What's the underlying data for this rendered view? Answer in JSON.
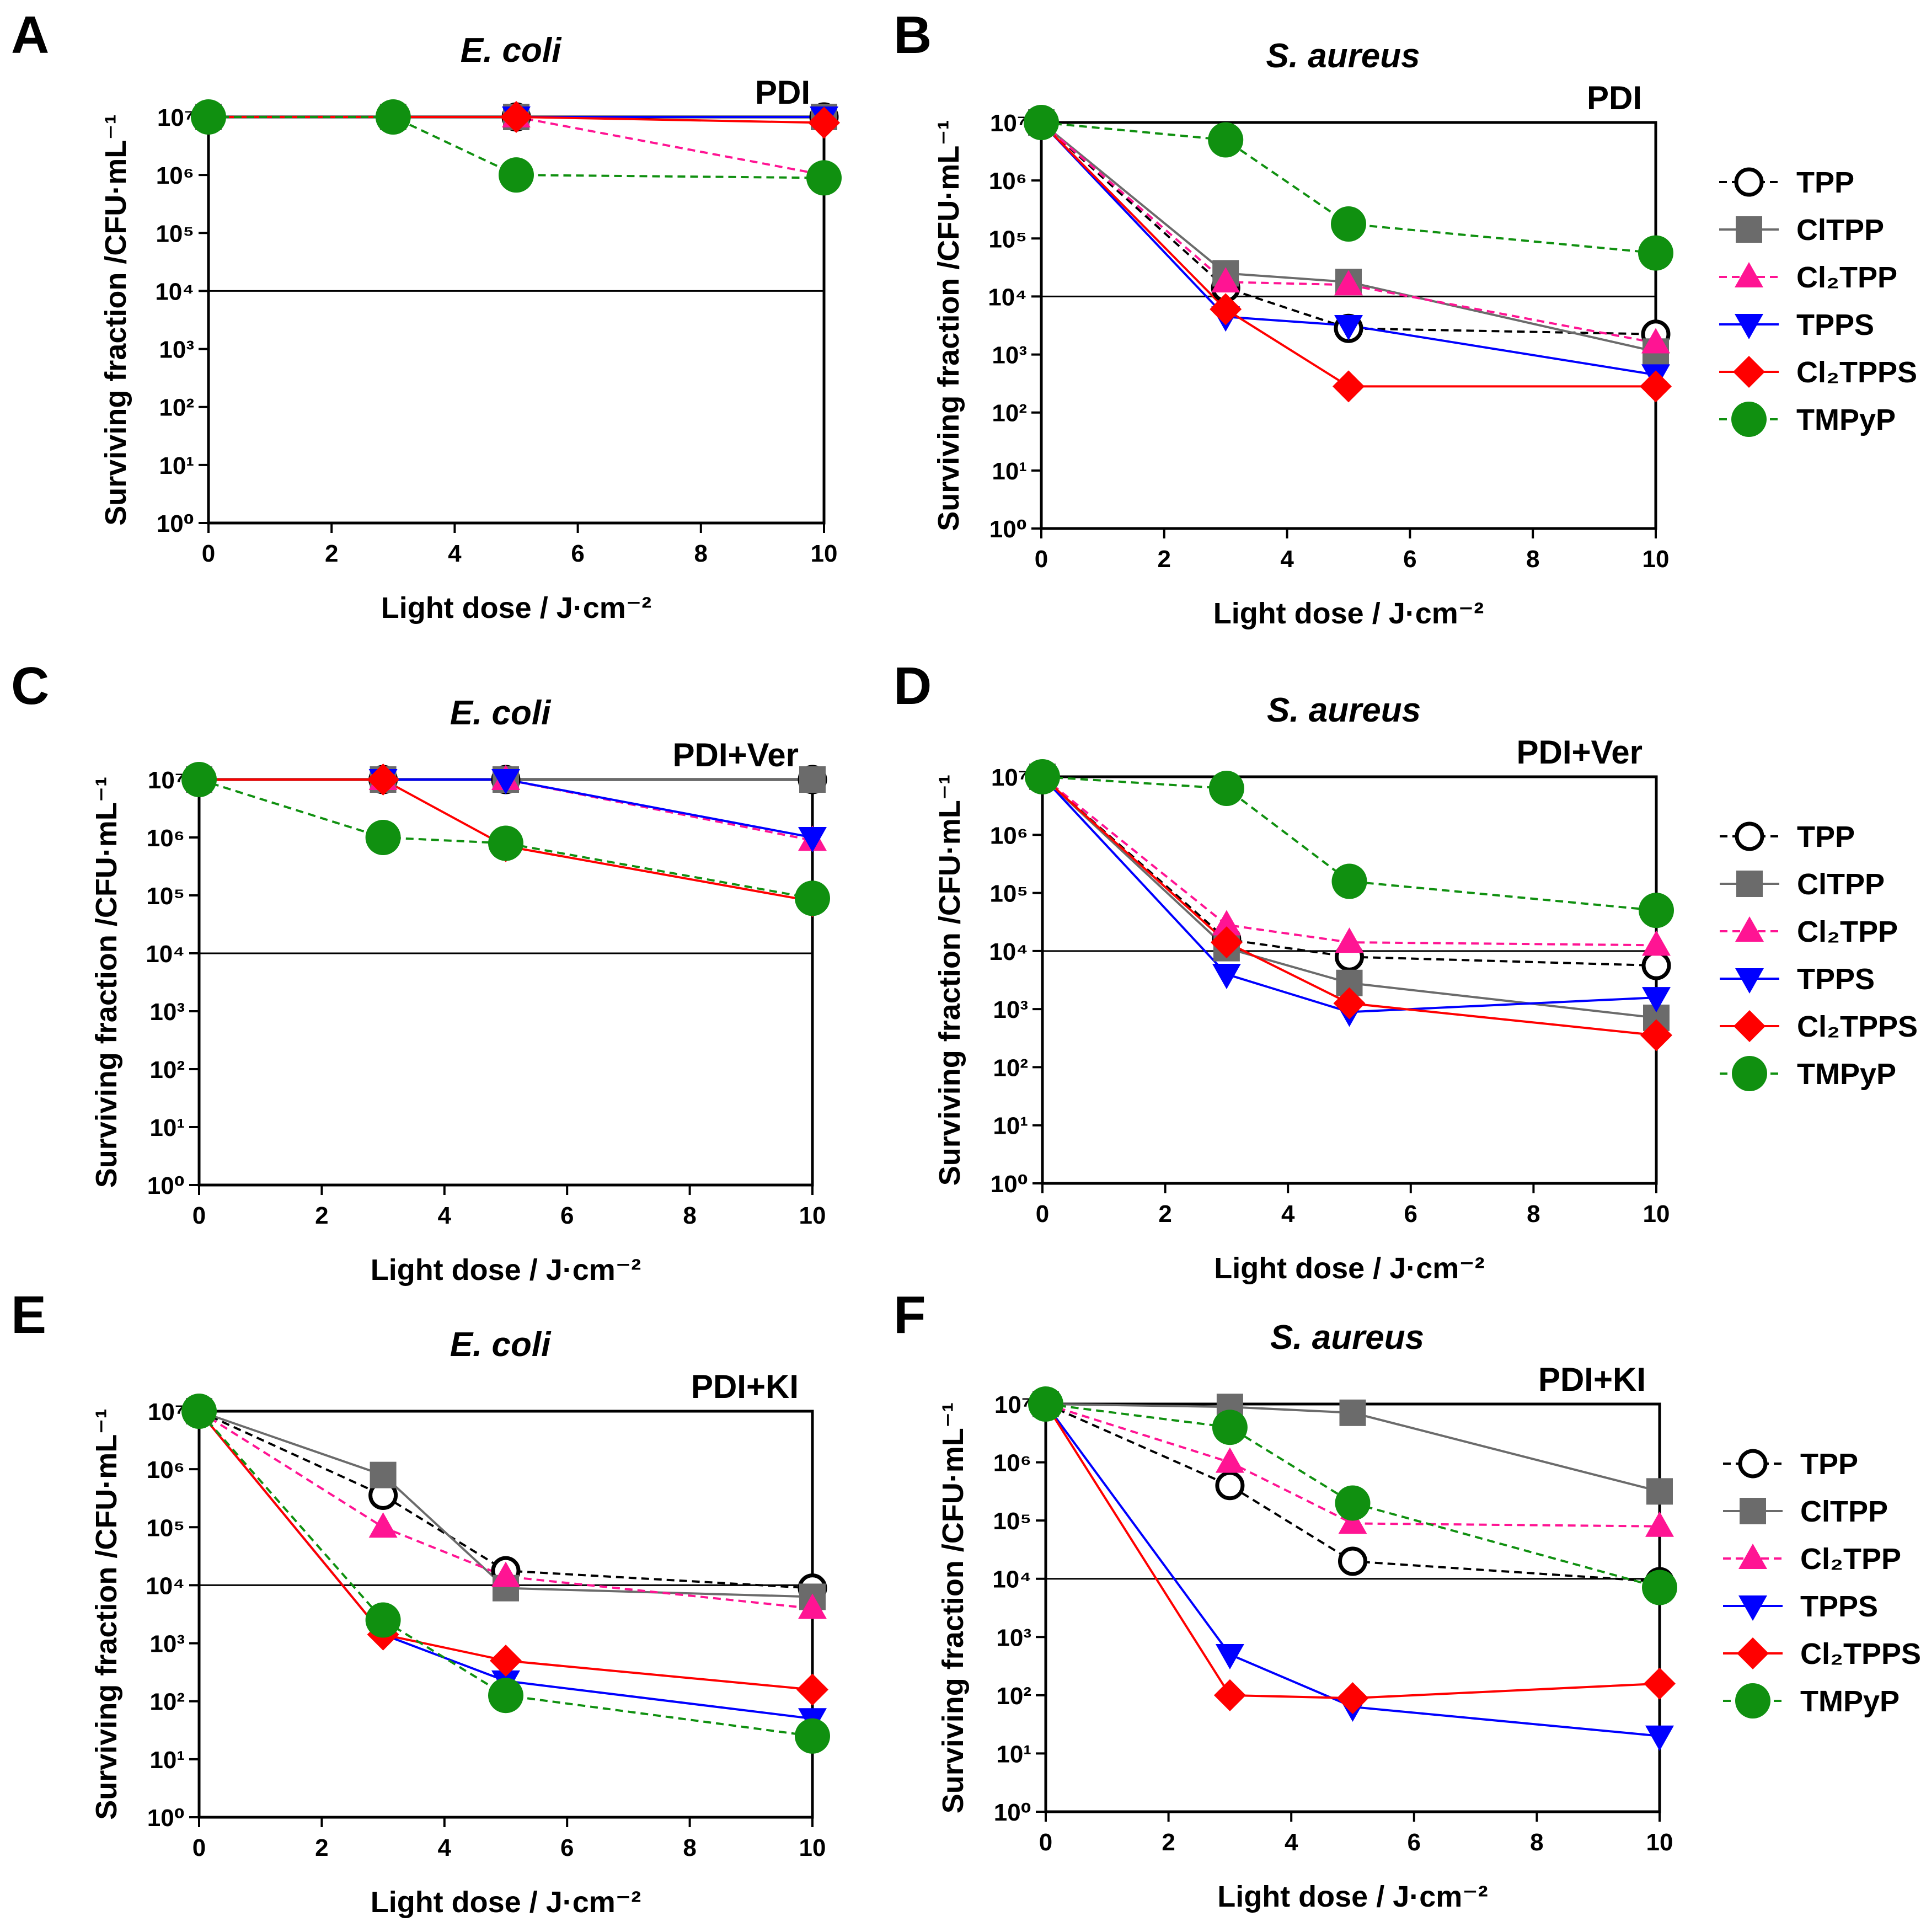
{
  "chart_data": [
    {
      "panel": "A",
      "type": "line",
      "title": "E. coli",
      "treatment": "PDI",
      "xlabel": "Light dose / J·cm⁻²",
      "ylabel": "Surviving fraction /CFU·mL⁻¹",
      "xlim": [
        0,
        10
      ],
      "ylim_log10": [
        0,
        7
      ],
      "reference_line_log10": 4,
      "x_ticks": [
        "0",
        "2",
        "4",
        "6",
        "8",
        "10"
      ],
      "y_ticks": [
        "10⁰",
        "10¹",
        "10²",
        "10³",
        "10⁴",
        "10⁵",
        "10⁶",
        "10⁷"
      ],
      "x": [
        0,
        3,
        5,
        10
      ],
      "legend": false,
      "series": [
        {
          "name": "TPP",
          "log10": [
            7,
            7,
            7,
            7
          ]
        },
        {
          "name": "ClTPP",
          "log10": [
            7,
            7,
            7,
            7
          ]
        },
        {
          "name": "Cl₂TPP",
          "log10": [
            7,
            7,
            7,
            6
          ]
        },
        {
          "name": "TPPS",
          "log10": [
            7,
            7,
            7,
            7
          ]
        },
        {
          "name": "Cl₂TPPS",
          "log10": [
            7,
            7,
            7,
            6.9
          ]
        },
        {
          "name": "TMPyP",
          "log10": [
            7,
            7,
            6,
            5.95
          ]
        }
      ]
    },
    {
      "panel": "B",
      "type": "line",
      "title": "S. aureus",
      "treatment": "PDI",
      "xlabel": "Light dose / J·cm⁻²",
      "ylabel": "Surviving fraction /CFU·mL⁻¹",
      "xlim": [
        0,
        10
      ],
      "ylim_log10": [
        0,
        7
      ],
      "reference_line_log10": 4,
      "x_ticks": [
        "0",
        "2",
        "4",
        "6",
        "8",
        "10"
      ],
      "y_ticks": [
        "10⁰",
        "10¹",
        "10²",
        "10³",
        "10⁴",
        "10⁵",
        "10⁶",
        "10⁷"
      ],
      "x": [
        0,
        3,
        5,
        10
      ],
      "legend": true,
      "series": [
        {
          "name": "TPP",
          "log10": [
            7,
            4.15,
            3.45,
            3.35
          ]
        },
        {
          "name": "ClTPP",
          "log10": [
            7,
            4.4,
            4.25,
            3.05
          ]
        },
        {
          "name": "Cl₂TPP",
          "log10": [
            7,
            4.25,
            4.2,
            3.2
          ]
        },
        {
          "name": "TPPS",
          "log10": [
            7,
            3.65,
            3.5,
            2.65
          ]
        },
        {
          "name": "Cl₂TPPS",
          "log10": [
            7,
            3.78,
            2.45,
            2.45
          ]
        },
        {
          "name": "TMPyP",
          "log10": [
            7,
            6.7,
            5.25,
            4.75
          ]
        }
      ]
    },
    {
      "panel": "C",
      "type": "line",
      "title": "E. coli",
      "treatment": "PDI+Ver",
      "xlabel": "Light dose / J·cm⁻²",
      "ylabel": "Surviving fraction /CFU·mL⁻¹",
      "xlim": [
        0,
        10
      ],
      "ylim_log10": [
        0,
        7
      ],
      "reference_line_log10": 4,
      "x_ticks": [
        "0",
        "2",
        "4",
        "6",
        "8",
        "10"
      ],
      "y_ticks": [
        "10⁰",
        "10¹",
        "10²",
        "10³",
        "10⁴",
        "10⁵",
        "10⁶",
        "10⁷"
      ],
      "x": [
        0,
        3,
        5,
        10
      ],
      "legend": false,
      "series": [
        {
          "name": "TPP",
          "log10": [
            7,
            7,
            7,
            7
          ]
        },
        {
          "name": "ClTPP",
          "log10": [
            7,
            7,
            7,
            7
          ]
        },
        {
          "name": "Cl₂TPP",
          "log10": [
            7,
            7,
            7,
            5.95
          ]
        },
        {
          "name": "TPPS",
          "log10": [
            7,
            7,
            7,
            6
          ]
        },
        {
          "name": "Cl₂TPPS",
          "log10": [
            7,
            7,
            5.85,
            4.9
          ]
        },
        {
          "name": "TMPyP",
          "log10": [
            7,
            6,
            5.9,
            4.95
          ]
        }
      ]
    },
    {
      "panel": "D",
      "type": "line",
      "title": "S. aureus",
      "treatment": "PDI+Ver",
      "xlabel": "Light dose / J·cm⁻²",
      "ylabel": "Surviving fraction /CFU·mL⁻¹",
      "xlim": [
        0,
        10
      ],
      "ylim_log10": [
        0,
        7
      ],
      "reference_line_log10": 4,
      "x_ticks": [
        "0",
        "2",
        "4",
        "6",
        "8",
        "10"
      ],
      "y_ticks": [
        "10⁰",
        "10¹",
        "10²",
        "10³",
        "10⁴",
        "10⁵",
        "10⁶",
        "10⁷"
      ],
      "x": [
        0,
        3,
        5,
        10
      ],
      "legend": true,
      "series": [
        {
          "name": "TPP",
          "log10": [
            7,
            4.2,
            3.9,
            3.75
          ]
        },
        {
          "name": "ClTPP",
          "log10": [
            7,
            4.05,
            3.45,
            2.85
          ]
        },
        {
          "name": "Cl₂TPP",
          "log10": [
            7,
            4.45,
            4.15,
            4.1
          ]
        },
        {
          "name": "TPPS",
          "log10": [
            7,
            3.6,
            2.95,
            3.2
          ]
        },
        {
          "name": "Cl₂TPPS",
          "log10": [
            7,
            4.15,
            3.1,
            2.55
          ]
        },
        {
          "name": "TMPyP",
          "log10": [
            7,
            6.8,
            5.2,
            4.7
          ]
        }
      ]
    },
    {
      "panel": "E",
      "type": "line",
      "title": "E. coli",
      "treatment": "PDI+KI",
      "xlabel": "Light dose / J·cm⁻²",
      "ylabel": "Surviving fraction /CFU·mL⁻¹",
      "xlim": [
        0,
        10
      ],
      "ylim_log10": [
        0,
        7
      ],
      "reference_line_log10": 4,
      "x_ticks": [
        "0",
        "2",
        "4",
        "6",
        "8",
        "10"
      ],
      "y_ticks": [
        "10⁰",
        "10¹",
        "10²",
        "10³",
        "10⁴",
        "10⁵",
        "10⁶",
        "10⁷"
      ],
      "x": [
        0,
        3,
        5,
        10
      ],
      "legend": false,
      "series": [
        {
          "name": "TPP",
          "log10": [
            7,
            5.55,
            4.25,
            3.95
          ]
        },
        {
          "name": "ClTPP",
          "log10": [
            7,
            5.9,
            3.95,
            3.8
          ]
        },
        {
          "name": "Cl₂TPP",
          "log10": [
            7,
            5,
            4.15,
            3.6
          ]
        },
        {
          "name": "TPPS",
          "log10": [
            7,
            3.15,
            2.35,
            1.7
          ]
        },
        {
          "name": "Cl₂TPPS",
          "log10": [
            7,
            3.15,
            2.7,
            2.2
          ]
        },
        {
          "name": "TMPyP",
          "log10": [
            7,
            3.4,
            2.1,
            1.4
          ]
        }
      ]
    },
    {
      "panel": "F",
      "type": "line",
      "title": "S. aureus",
      "treatment": "PDI+KI",
      "xlabel": "Light dose / J·cm⁻²",
      "ylabel": "Surviving fraction /CFU·mL⁻¹",
      "xlim": [
        0,
        10
      ],
      "ylim_log10": [
        0,
        7
      ],
      "reference_line_log10": 4,
      "x_ticks": [
        "0",
        "2",
        "4",
        "6",
        "8",
        "10"
      ],
      "y_ticks": [
        "10⁰",
        "10¹",
        "10²",
        "10³",
        "10⁴",
        "10⁵",
        "10⁶",
        "10⁷"
      ],
      "x": [
        0,
        3,
        5,
        10
      ],
      "legend": true,
      "series": [
        {
          "name": "TPP",
          "log10": [
            7,
            5.6,
            4.3,
            3.95
          ]
        },
        {
          "name": "ClTPP",
          "log10": [
            7,
            6.95,
            6.85,
            5.5
          ]
        },
        {
          "name": "Cl₂TPP",
          "log10": [
            7,
            6,
            4.95,
            4.9
          ]
        },
        {
          "name": "TPPS",
          "log10": [
            7,
            2.7,
            1.8,
            1.3
          ]
        },
        {
          "name": "Cl₂TPPS",
          "log10": [
            7,
            2,
            1.95,
            2.2
          ]
        },
        {
          "name": "TMPyP",
          "log10": [
            7,
            6.6,
            5.3,
            3.85
          ]
        }
      ]
    }
  ],
  "series_styles": [
    {
      "name": "TPP",
      "color": "#000000",
      "marker": "circle-open",
      "dashed": true
    },
    {
      "name": "ClTPP",
      "color": "#6b6b6b",
      "marker": "square",
      "dashed": false
    },
    {
      "name": "Cl₂TPP",
      "color": "#ff1493",
      "marker": "triangle-up",
      "dashed": true
    },
    {
      "name": "TPPS",
      "color": "#0000ff",
      "marker": "triangle-down",
      "dashed": false
    },
    {
      "name": "Cl₂TPPS",
      "color": "#ff0000",
      "marker": "diamond",
      "dashed": false
    },
    {
      "name": "TMPyP",
      "color": "#109010",
      "marker": "circle",
      "dashed": true
    }
  ],
  "reference_line_color": "#000000"
}
